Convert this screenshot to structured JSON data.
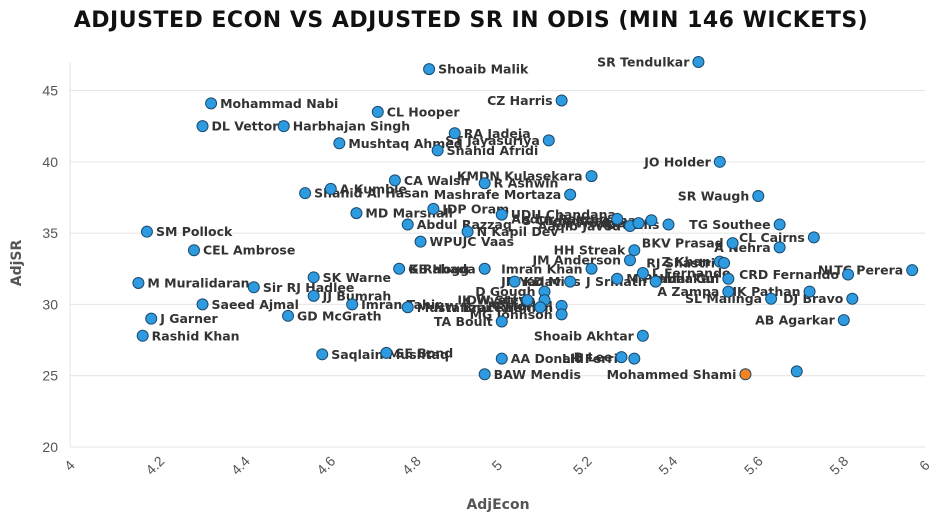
{
  "chart_data": {
    "type": "scatter",
    "title": "ADJUSTED ECON VS ADJUSTED SR IN ODIS (MIN 146 WICKETS)",
    "xlabel": "AdjEcon",
    "ylabel": "AdjSR",
    "xlim": [
      4,
      6
    ],
    "ylim": [
      20,
      47
    ],
    "xticks": [
      "4",
      "4.2",
      "4.4",
      "4.6",
      "4.8",
      "5",
      "5.2",
      "5.4",
      "5.6",
      "5.8",
      "6"
    ],
    "yticks": [
      "20",
      "25",
      "30",
      "35",
      "40",
      "45"
    ],
    "grid": "horizontal",
    "colors": {
      "point": "#2e9be0",
      "highlight": "#f5821f",
      "outline": "#1a4a6e"
    },
    "points": [
      {
        "name": "SR Tendulkar",
        "x": 5.47,
        "y": 47.0,
        "side": "left"
      },
      {
        "name": "Shoaib Malik",
        "x": 4.84,
        "y": 46.5,
        "side": "right"
      },
      {
        "name": "Mohammad Nabi",
        "x": 4.33,
        "y": 44.1,
        "side": "right"
      },
      {
        "name": "CZ Harris",
        "x": 5.15,
        "y": 44.3,
        "side": "left"
      },
      {
        "name": "CL Hooper",
        "x": 4.72,
        "y": 43.5,
        "side": "right"
      },
      {
        "name": "DL Vettori",
        "x": 4.31,
        "y": 42.5,
        "side": "right"
      },
      {
        "name": "Harbhajan Singh",
        "x": 4.5,
        "y": 42.5,
        "side": "right"
      },
      {
        "name": "RA Jadeja",
        "x": 4.9,
        "y": 42.0,
        "side": "right"
      },
      {
        "name": "ST Jayasuriya",
        "x": 5.12,
        "y": 41.5,
        "side": "left"
      },
      {
        "name": "Mushtaq Ahmed",
        "x": 4.63,
        "y": 41.3,
        "side": "right"
      },
      {
        "name": "Shahid Afridi",
        "x": 4.86,
        "y": 40.8,
        "side": "right"
      },
      {
        "name": "JO Holder",
        "x": 5.52,
        "y": 40.0,
        "side": "left"
      },
      {
        "name": "KMDN Kulasekara",
        "x": 5.22,
        "y": 39.0,
        "side": "left"
      },
      {
        "name": "CA Walsh",
        "x": 4.76,
        "y": 38.7,
        "side": "right"
      },
      {
        "name": "R Ashwin",
        "x": 4.97,
        "y": 38.5,
        "side": "right"
      },
      {
        "name": "A Kumble",
        "x": 4.61,
        "y": 38.1,
        "side": "right"
      },
      {
        "name": "Shahid Al Hasan",
        "x": 4.55,
        "y": 37.8,
        "side": "right"
      },
      {
        "name": "Mashrafe Mortaza",
        "x": 5.17,
        "y": 37.7,
        "side": "left"
      },
      {
        "name": "SR Waugh",
        "x": 5.61,
        "y": 37.6,
        "side": "left"
      },
      {
        "name": "JDP Oram",
        "x": 4.85,
        "y": 36.7,
        "side": "right"
      },
      {
        "name": "MD Marshall",
        "x": 4.67,
        "y": 36.4,
        "side": "right"
      },
      {
        "name": "UDU Chandana",
        "x": 5.01,
        "y": 36.3,
        "side": "right"
      },
      {
        "name": "Abdul Razzaq",
        "x": 4.79,
        "y": 35.6,
        "side": "right"
      },
      {
        "name": "Abdur Razzaq",
        "x": 5.28,
        "y": 36.0,
        "side": "left"
      },
      {
        "name": "Aaqib Javed",
        "x": 5.31,
        "y": 35.5,
        "side": "left"
      },
      {
        "name": "CR Woakes",
        "x": 5.33,
        "y": 35.7,
        "side": "left"
      },
      {
        "name": "S Chandrasekhar",
        "x": 5.36,
        "y": 35.9,
        "side": "left"
      },
      {
        "name": "DA Ellis",
        "x": 5.4,
        "y": 35.6,
        "side": "left"
      },
      {
        "name": "TG Southee",
        "x": 5.66,
        "y": 35.6,
        "side": "left"
      },
      {
        "name": "N Kapil Dev",
        "x": 4.93,
        "y": 35.1,
        "side": "right"
      },
      {
        "name": "CL Cairns",
        "x": 5.74,
        "y": 34.7,
        "side": "left"
      },
      {
        "name": "WPUJC Vaas",
        "x": 4.82,
        "y": 34.4,
        "side": "right"
      },
      {
        "name": "BKV Prasad",
        "x": 5.55,
        "y": 34.3,
        "side": "left"
      },
      {
        "name": "A Nehra",
        "x": 5.66,
        "y": 34.0,
        "side": "left"
      },
      {
        "name": "SM Pollock",
        "x": 4.18,
        "y": 35.1,
        "side": "right"
      },
      {
        "name": "CEL Ambrose",
        "x": 4.29,
        "y": 33.8,
        "side": "right"
      },
      {
        "name": "HH Streak",
        "x": 5.32,
        "y": 33.8,
        "side": "left"
      },
      {
        "name": "Z Khan",
        "x": 5.52,
        "y": 33.0,
        "side": "left"
      },
      {
        "name": "JM Anderson",
        "x": 5.31,
        "y": 33.1,
        "side": "left"
      },
      {
        "name": "RJ Shastri",
        "x": 5.53,
        "y": 32.9,
        "side": "left"
      },
      {
        "name": "K Rabada",
        "x": 4.97,
        "y": 32.5,
        "side": "left"
      },
      {
        "name": "Imran Khan",
        "x": 5.22,
        "y": 32.5,
        "side": "left"
      },
      {
        "name": "GB Hogg",
        "x": 4.77,
        "y": 32.5,
        "side": "right"
      },
      {
        "name": "L Fernando",
        "x": 5.34,
        "y": 32.2,
        "side": "right"
      },
      {
        "name": "CRD Fernando",
        "x": 5.82,
        "y": 32.1,
        "side": "left"
      },
      {
        "name": "NLTC Perera",
        "x": 5.97,
        "y": 32.4,
        "side": "left"
      },
      {
        "name": "SK Warne",
        "x": 4.57,
        "y": 31.9,
        "side": "right"
      },
      {
        "name": "M Prabhakar",
        "x": 5.28,
        "y": 31.8,
        "side": "right"
      },
      {
        "name": "Umar Gul",
        "x": 5.54,
        "y": 31.8,
        "side": "left"
      },
      {
        "name": "Sir RJ Hadlee",
        "x": 4.43,
        "y": 31.2,
        "side": "right"
      },
      {
        "name": "M Muralidaran",
        "x": 4.16,
        "y": 31.5,
        "side": "right"
      },
      {
        "name": "KD Mills",
        "x": 5.04,
        "y": 31.6,
        "side": "right"
      },
      {
        "name": "JP Yadav",
        "x": 5.17,
        "y": 31.6,
        "side": "left"
      },
      {
        "name": "J Srinath",
        "x": 5.37,
        "y": 31.6,
        "side": "left"
      },
      {
        "name": "D Gough",
        "x": 5.11,
        "y": 30.9,
        "side": "left"
      },
      {
        "name": "IK Pathan",
        "x": 5.73,
        "y": 30.9,
        "side": "left"
      },
      {
        "name": "A Zampa",
        "x": 5.54,
        "y": 30.9,
        "side": "left"
      },
      {
        "name": "SL Malinga",
        "x": 5.64,
        "y": 30.4,
        "side": "left"
      },
      {
        "name": "DJ Bravo",
        "x": 5.83,
        "y": 30.4,
        "side": "left"
      },
      {
        "name": "JJ Bumrah",
        "x": 4.57,
        "y": 30.6,
        "side": "right"
      },
      {
        "name": "DW Steyn",
        "x": 5.11,
        "y": 30.3,
        "side": "left"
      },
      {
        "name": "IK Wyatt",
        "x": 5.07,
        "y": 30.3,
        "side": "left"
      },
      {
        "name": "Imran Tahir",
        "x": 4.66,
        "y": 30.0,
        "side": "right"
      },
      {
        "name": "Mustafizur Rahman",
        "x": 4.79,
        "y": 29.8,
        "side": "right"
      },
      {
        "name": "NW Bracewell",
        "x": 5.1,
        "y": 29.8,
        "side": "left"
      },
      {
        "name": "Saeed Ajmal",
        "x": 4.31,
        "y": 30.0,
        "side": "right"
      },
      {
        "name": "M Morkel",
        "x": 5.15,
        "y": 29.9,
        "side": "left"
      },
      {
        "name": "GD McGrath",
        "x": 4.51,
        "y": 29.2,
        "side": "right"
      },
      {
        "name": "MG Johnson",
        "x": 5.15,
        "y": 29.3,
        "side": "left"
      },
      {
        "name": "J Garner",
        "x": 4.19,
        "y": 29.0,
        "side": "right"
      },
      {
        "name": "TA Boult",
        "x": 5.01,
        "y": 28.8,
        "side": "left"
      },
      {
        "name": "AB Agarkar",
        "x": 5.81,
        "y": 28.9,
        "side": "left"
      },
      {
        "name": "Rashid Khan",
        "x": 4.17,
        "y": 27.8,
        "side": "right"
      },
      {
        "name": "Shoaib Akhtar",
        "x": 5.34,
        "y": 27.8,
        "side": "left"
      },
      {
        "name": "SE Bond",
        "x": 4.74,
        "y": 26.6,
        "side": "right"
      },
      {
        "name": "Saqlain Mushtaq",
        "x": 4.59,
        "y": 26.5,
        "side": "right"
      },
      {
        "name": "AA Donald",
        "x": 5.01,
        "y": 26.2,
        "side": "right"
      },
      {
        "name": "B Lee",
        "x": 5.29,
        "y": 26.3,
        "side": "left"
      },
      {
        "name": "LH Ferris",
        "x": 5.32,
        "y": 26.2,
        "side": "left"
      },
      {
        "name": "BAW Mendis",
        "x": 4.97,
        "y": 25.1,
        "side": "right"
      },
      {
        "name": "Mohammed Shami",
        "x": 5.58,
        "y": 25.1,
        "side": "left",
        "highlight": true
      },
      {
        "name": "",
        "x": 5.7,
        "y": 25.3,
        "side": "left"
      }
    ]
  }
}
